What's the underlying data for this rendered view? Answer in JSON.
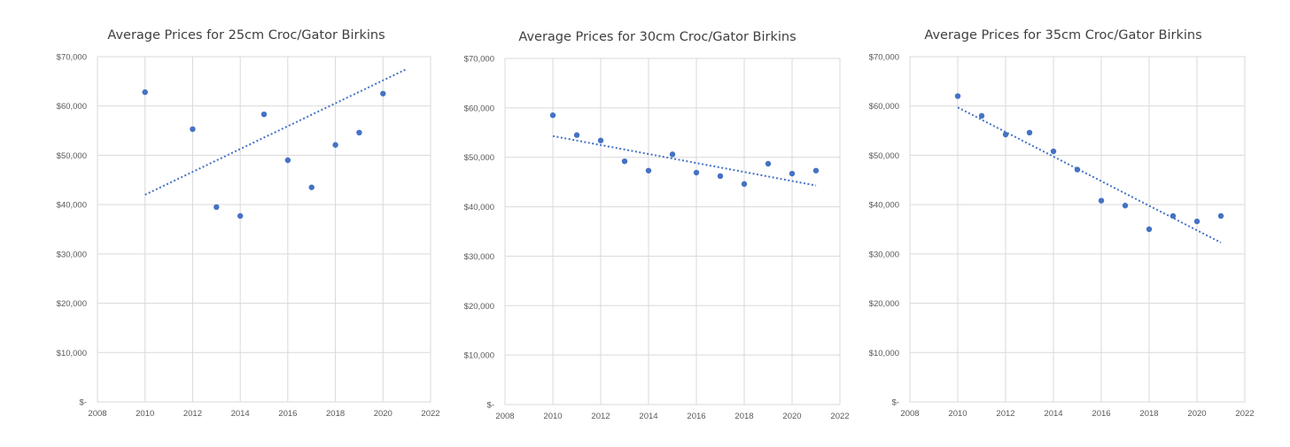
{
  "colors": {
    "point": "#4472c4",
    "trend": "#4472c4",
    "grid": "#d9d9d9",
    "text": "#595959"
  },
  "chart_data": [
    {
      "type": "scatter",
      "title": "Average Prices for 25cm Croc/Gator Birkins",
      "xlabel": "",
      "ylabel": "",
      "xlim": [
        2008,
        2022
      ],
      "ylim": [
        0,
        70000
      ],
      "xticks": [
        "2008",
        "2010",
        "2012",
        "2014",
        "2016",
        "2018",
        "2020",
        "2022"
      ],
      "yticks": [
        "$-",
        "$10,000",
        "$20,000",
        "$30,000",
        "$40,000",
        "$50,000",
        "$60,000",
        "$70,000"
      ],
      "grid": true,
      "trendline": {
        "style": "dotted",
        "from": [
          2010,
          42000
        ],
        "to": [
          2021,
          67500
        ]
      },
      "points": [
        [
          2010,
          62800
        ],
        [
          2012,
          55300
        ],
        [
          2013,
          39500
        ],
        [
          2014,
          37700
        ],
        [
          2015,
          58300
        ],
        [
          2016,
          49000
        ],
        [
          2017,
          43500
        ],
        [
          2018,
          52100
        ],
        [
          2019,
          54600
        ],
        [
          2020,
          62500
        ]
      ]
    },
    {
      "type": "scatter",
      "title": "Average Prices for 30cm Croc/Gator Birkins",
      "xlabel": "",
      "ylabel": "",
      "xlim": [
        2008,
        2022
      ],
      "ylim": [
        0,
        70000
      ],
      "xticks": [
        "2008",
        "2010",
        "2012",
        "2014",
        "2016",
        "2018",
        "2020",
        "2022"
      ],
      "yticks": [
        "$-",
        "$10,000",
        "$20,000",
        "$30,000",
        "$40,000",
        "$50,000",
        "$60,000",
        "$70,000"
      ],
      "grid": true,
      "trendline": {
        "style": "dotted",
        "from": [
          2010,
          54300
        ],
        "to": [
          2021,
          44300
        ]
      },
      "points": [
        [
          2010,
          58500
        ],
        [
          2011,
          54500
        ],
        [
          2012,
          53400
        ],
        [
          2013,
          49200
        ],
        [
          2014,
          47300
        ],
        [
          2015,
          50600
        ],
        [
          2016,
          46900
        ],
        [
          2017,
          46200
        ],
        [
          2018,
          44600
        ],
        [
          2019,
          48700
        ],
        [
          2020,
          46700
        ],
        [
          2021,
          47300
        ]
      ]
    },
    {
      "type": "scatter",
      "title": "Average Prices for 35cm Croc/Gator Birkins",
      "xlabel": "",
      "ylabel": "",
      "xlim": [
        2008,
        2022
      ],
      "ylim": [
        0,
        70000
      ],
      "xticks": [
        "2008",
        "2010",
        "2012",
        "2014",
        "2016",
        "2018",
        "2020",
        "2022"
      ],
      "yticks": [
        "$-",
        "$10,000",
        "$20,000",
        "$30,000",
        "$40,000",
        "$50,000",
        "$60,000",
        "$70,000"
      ],
      "grid": true,
      "trendline": {
        "style": "dotted",
        "from": [
          2010,
          59700
        ],
        "to": [
          2021,
          32300
        ]
      },
      "points": [
        [
          2010,
          62000
        ],
        [
          2011,
          58000
        ],
        [
          2012,
          54200
        ],
        [
          2013,
          54600
        ],
        [
          2014,
          50800
        ],
        [
          2015,
          47100
        ],
        [
          2016,
          40800
        ],
        [
          2017,
          39800
        ],
        [
          2018,
          35000
        ],
        [
          2019,
          37700
        ],
        [
          2020,
          36600
        ],
        [
          2021,
          37700
        ]
      ]
    }
  ]
}
